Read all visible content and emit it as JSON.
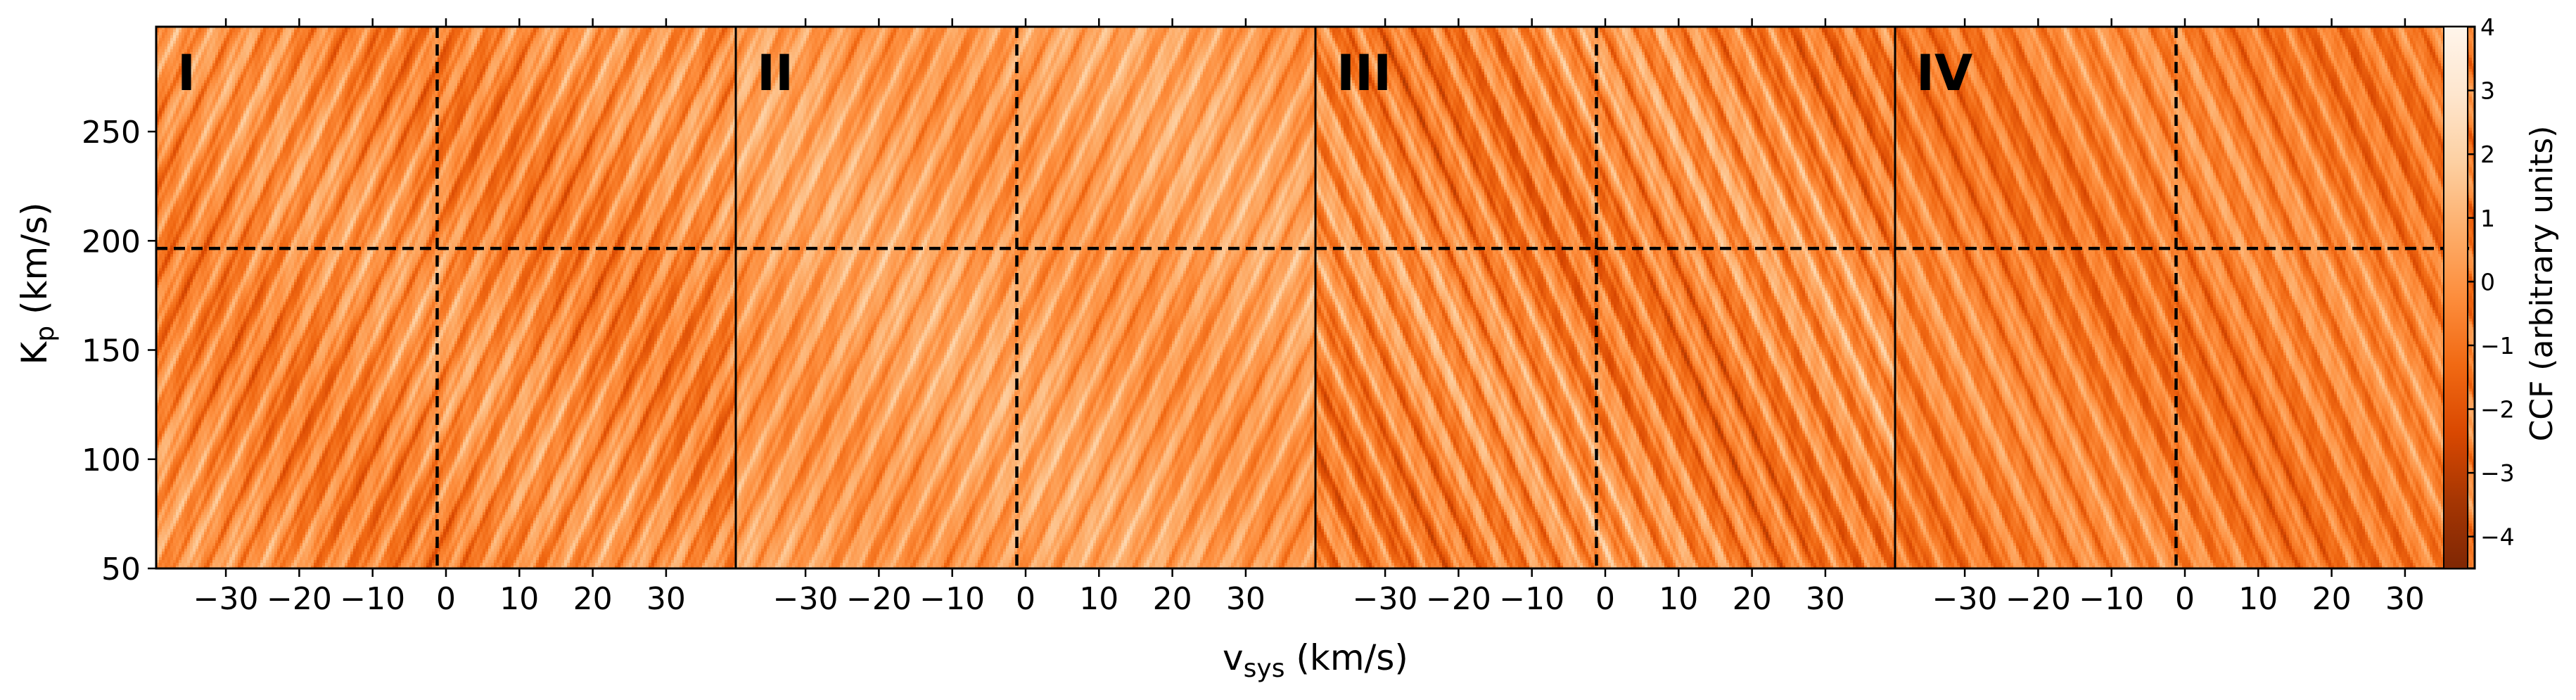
{
  "chart_data": {
    "type": "heatmap",
    "xlabel": {
      "main": "v",
      "sub": "sys",
      "rest": " (km/s)"
    },
    "ylabel": {
      "main": "K",
      "sub": "p",
      "rest": " (km/s)"
    },
    "xlim": [
      -39.5,
      39.5
    ],
    "ylim": [
      50,
      298
    ],
    "x_ticks": [
      -30,
      -20,
      -10,
      0,
      10,
      20,
      30
    ],
    "x_tick_labels": [
      "−30",
      "−20",
      "−10",
      "0",
      "10",
      "20",
      "30"
    ],
    "y_ticks": [
      50,
      100,
      150,
      200,
      250
    ],
    "y_tick_labels": [
      "50",
      "100",
      "150",
      "200",
      "250"
    ],
    "grid": false,
    "reference_lines": {
      "vsys": -1.2,
      "kp": 196.5,
      "style": "dashed"
    },
    "colormap": {
      "name": "Oranges_r",
      "stops": [
        "#7f2704",
        "#a63603",
        "#d94801",
        "#f16913",
        "#fd8d3c",
        "#fdae6b",
        "#fdd0a2",
        "#fee6ce",
        "#fff5eb"
      ]
    },
    "panels": [
      {
        "label": "I",
        "stripe_direction": "descending",
        "mean": -0.3,
        "spread": 1.6
      },
      {
        "label": "II",
        "stripe_direction": "descending",
        "mean": 0.3,
        "spread": 1.3
      },
      {
        "label": "III",
        "stripe_direction": "ascending",
        "mean": -0.4,
        "spread": 1.9
      },
      {
        "label": "IV",
        "stripe_direction": "ascending",
        "mean": -0.6,
        "spread": 1.5
      }
    ],
    "colorbar": {
      "label": "CCF (arbitrary units)",
      "range": [
        -4.5,
        4
      ],
      "ticks": [
        4,
        3,
        2,
        1,
        0,
        -1,
        -2,
        -3,
        -4
      ],
      "tick_labels": [
        "4",
        "3",
        "2",
        "1",
        "0",
        "−1",
        "−2",
        "−3",
        "−4"
      ]
    }
  }
}
